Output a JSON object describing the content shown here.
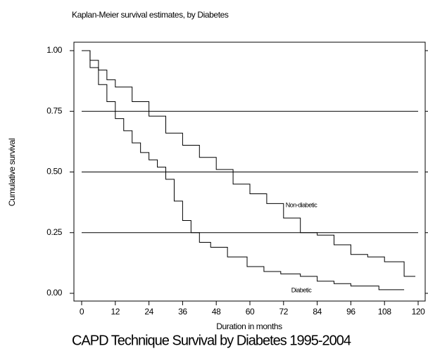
{
  "chart_data": {
    "type": "step",
    "title": "Kaplan-Meier survival estimates, by Diabetes",
    "caption": "CAPD Technique Survival by Diabetes 1995-2004",
    "xlabel": "Duration in months",
    "ylabel": "Cumulative survival",
    "annotations": [
      "Non-diabetic",
      "Diabetic"
    ],
    "xlim": [
      0,
      120
    ],
    "xticks": [
      0,
      12,
      24,
      36,
      48,
      60,
      72,
      84,
      96,
      108,
      120
    ],
    "ylim": [
      0,
      1
    ],
    "yticks": [
      {
        "value": 0,
        "label": "0.00"
      },
      {
        "value": 0.25,
        "label": "0.25"
      },
      {
        "value": 0.5,
        "label": "0.50"
      },
      {
        "value": 0.75,
        "label": "0.75"
      },
      {
        "value": 1,
        "label": "1.00"
      }
    ],
    "grid": true,
    "series": [
      {
        "name": "Non-diabetic",
        "color": "#000000",
        "x": [
          0,
          3,
          6,
          9,
          12,
          18,
          24,
          30,
          36,
          42,
          48,
          54,
          60,
          66,
          72,
          78,
          84,
          90,
          96,
          102,
          108,
          115,
          119
        ],
        "values": [
          1,
          0.96,
          0.92,
          0.88,
          0.85,
          0.79,
          0.73,
          0.66,
          0.61,
          0.56,
          0.51,
          0.45,
          0.41,
          0.37,
          0.31,
          0.25,
          0.24,
          0.2,
          0.16,
          0.15,
          0.13,
          0.07,
          0.07
        ]
      },
      {
        "name": "Diabetic",
        "color": "#000000",
        "x": [
          0,
          3,
          6,
          9,
          12,
          15,
          18,
          21,
          24,
          27,
          30,
          33,
          36,
          39,
          42,
          46,
          52,
          59,
          65,
          71,
          78,
          84,
          90,
          96,
          106,
          115
        ],
        "values": [
          1,
          0.93,
          0.86,
          0.79,
          0.72,
          0.67,
          0.62,
          0.58,
          0.55,
          0.52,
          0.47,
          0.38,
          0.3,
          0.25,
          0.21,
          0.19,
          0.15,
          0.11,
          0.09,
          0.08,
          0.07,
          0.05,
          0.04,
          0.03,
          0.015,
          0.015
        ]
      }
    ]
  }
}
